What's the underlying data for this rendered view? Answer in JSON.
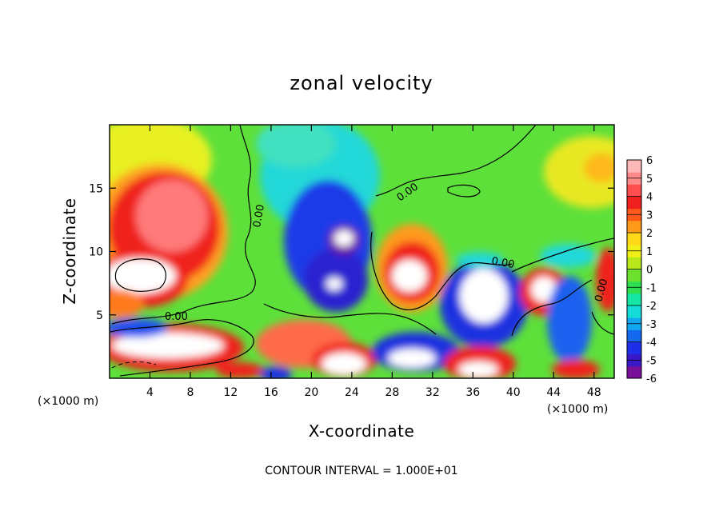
{
  "chart_data": {
    "type": "heatmap",
    "title": "zonal velocity",
    "xlabel": "X-coordinate",
    "ylabel": "Z-coordinate",
    "x_unit": "(×1000 m)",
    "x_unit_bottom": "(×1000 m)",
    "xlim": [
      0,
      50
    ],
    "ylim": [
      0,
      20
    ],
    "x_ticks": [
      4,
      8,
      12,
      16,
      20,
      24,
      28,
      32,
      36,
      40,
      44,
      48
    ],
    "y_ticks": [
      5,
      10,
      15
    ],
    "colorbar": {
      "values": [
        6,
        5,
        4,
        3,
        2,
        1,
        0,
        -1,
        -2,
        -3,
        -4,
        -5,
        -6
      ],
      "min": -6,
      "max": 6,
      "colors": [
        "#7a0f9a",
        "#3a18c8",
        "#1f2fe8",
        "#1469f0",
        "#12a8f0",
        "#16dcd8",
        "#16e6a4",
        "#2ee050",
        "#6ee030",
        "#b8e81c",
        "#f0f018",
        "#ffd818",
        "#ff9a1a",
        "#ff5a1a",
        "#f0201e",
        "#ff4e4e",
        "#ff8a8a",
        "#ffb8b8"
      ]
    },
    "contour_labels": [
      "0.00",
      "0.00",
      "0.00",
      "0.00",
      "0.00"
    ],
    "field_samples": [
      {
        "x": 2,
        "z": 18,
        "v": 2.2
      },
      {
        "x": 6,
        "z": 13,
        "v": 5.0
      },
      {
        "x": 4,
        "z": 8,
        "v": 6.5
      },
      {
        "x": 5,
        "z": 2,
        "v": 6.5
      },
      {
        "x": 16,
        "z": 17,
        "v": 0.4
      },
      {
        "x": 21,
        "z": 14,
        "v": -3.0
      },
      {
        "x": 22,
        "z": 11,
        "v": -6.5
      },
      {
        "x": 21,
        "z": 7,
        "v": -5.0
      },
      {
        "x": 22,
        "z": 2,
        "v": 6.5
      },
      {
        "x": 30,
        "z": 8,
        "v": 6.5
      },
      {
        "x": 30,
        "z": 2,
        "v": -6.5
      },
      {
        "x": 37,
        "z": 6,
        "v": 6.5
      },
      {
        "x": 35,
        "z": 15,
        "v": 0.5
      },
      {
        "x": 43,
        "z": 7,
        "v": 6.5
      },
      {
        "x": 47,
        "z": 4,
        "v": -3.5
      },
      {
        "x": 48,
        "z": 17,
        "v": 3.0
      }
    ]
  },
  "footer": {
    "contour_interval": "CONTOUR INTERVAL = 1.000E+01"
  }
}
